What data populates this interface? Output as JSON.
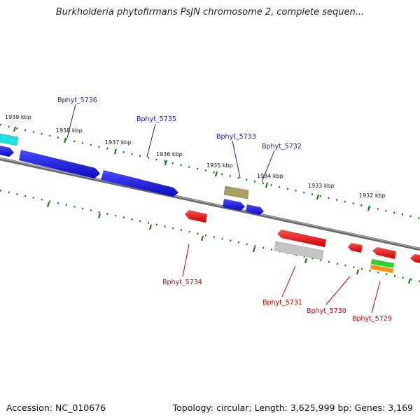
{
  "title": "Burkholderia phytofirmans PsJN chromosome 2, complete sequen...",
  "footer": {
    "accession": "Accession: NC_010676",
    "summary": "Topology: circular; Length: 3,625,999 bp; Genes: 3,169"
  },
  "colors": {
    "backbone": "#8a8a8a",
    "tick": "#1a7a1a",
    "forward_label": "#1a1aaa",
    "reverse_label": "#cc0000"
  },
  "ticks": [
    "1939 kbp",
    "1938 kbp",
    "1937 kbp",
    "1936 kbp",
    "1935 kbp",
    "1934 kbp",
    "1933 kbp",
    "1932 kbp"
  ],
  "genes": [
    {
      "name": "Bphyt_5736",
      "strand": "forward",
      "color": "#1a1ae0"
    },
    {
      "name": "Bphyt_5735",
      "strand": "forward",
      "color": "#1a1ae0"
    },
    {
      "name": "Bphyt_5733",
      "strand": "forward",
      "color": "#1a1ae0"
    },
    {
      "name": "Bphyt_5732",
      "strand": "forward",
      "color": "#1a1ae0"
    },
    {
      "name": "Bphyt_5734",
      "strand": "reverse",
      "color": "#e81010"
    },
    {
      "name": "Bphyt_5731",
      "strand": "reverse",
      "color": "#e81010"
    },
    {
      "name": "Bphyt_5730",
      "strand": "reverse",
      "color": "#e81010"
    },
    {
      "name": "Bphyt_5729",
      "strand": "reverse",
      "color": "#e81010"
    }
  ]
}
